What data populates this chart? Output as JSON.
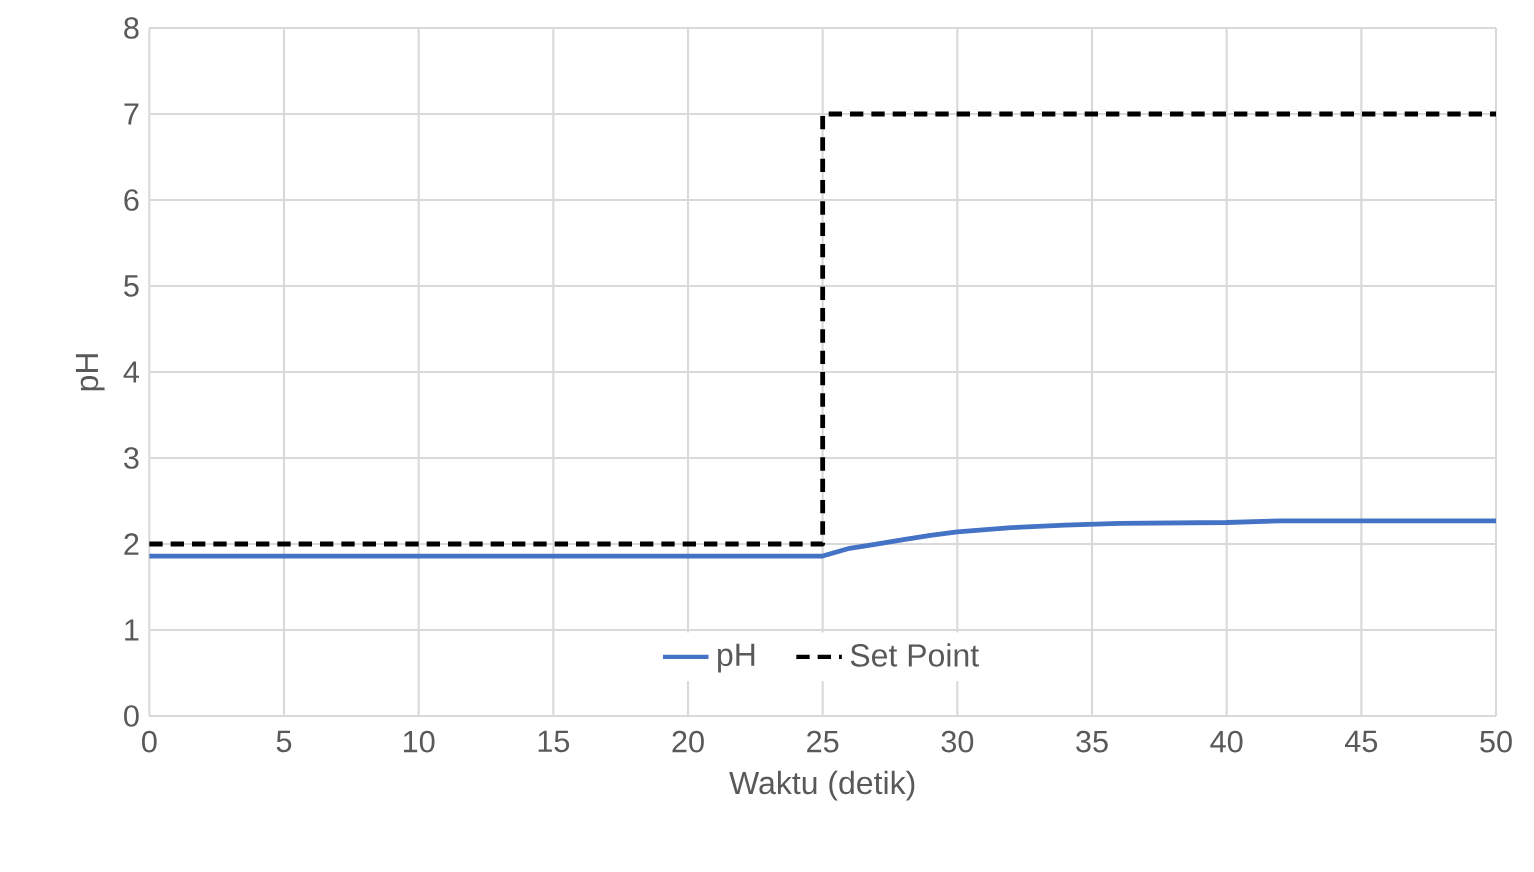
{
  "chart_data": {
    "type": "line",
    "xlabel": "Waktu (detik)",
    "ylabel": "pH",
    "xlim": [
      0,
      50
    ],
    "xticks": [
      0,
      5,
      10,
      15,
      20,
      25,
      30,
      35,
      40,
      45,
      50
    ],
    "ylim": [
      0,
      8
    ],
    "yticks": [
      0,
      1,
      2,
      3,
      4,
      5,
      6,
      7,
      8
    ],
    "grid": true,
    "legend": "bottom",
    "marker": "none",
    "series": [
      {
        "name": "pH",
        "color": "#4472c4",
        "line_style": "solid",
        "x": [
          0,
          5,
          10,
          15,
          20,
          25,
          26,
          27,
          28,
          29,
          30,
          32,
          34,
          36,
          40,
          42,
          50
        ],
        "values": [
          1.86,
          1.86,
          1.86,
          1.86,
          1.86,
          1.86,
          1.95,
          2.0,
          2.05,
          2.1,
          2.14,
          2.19,
          2.22,
          2.24,
          2.25,
          2.27,
          2.27
        ]
      },
      {
        "name": "Set Point",
        "color": "#000000",
        "line_style": "dashed",
        "x": [
          0,
          25,
          25,
          50
        ],
        "values": [
          2,
          2,
          7,
          7
        ]
      }
    ]
  }
}
